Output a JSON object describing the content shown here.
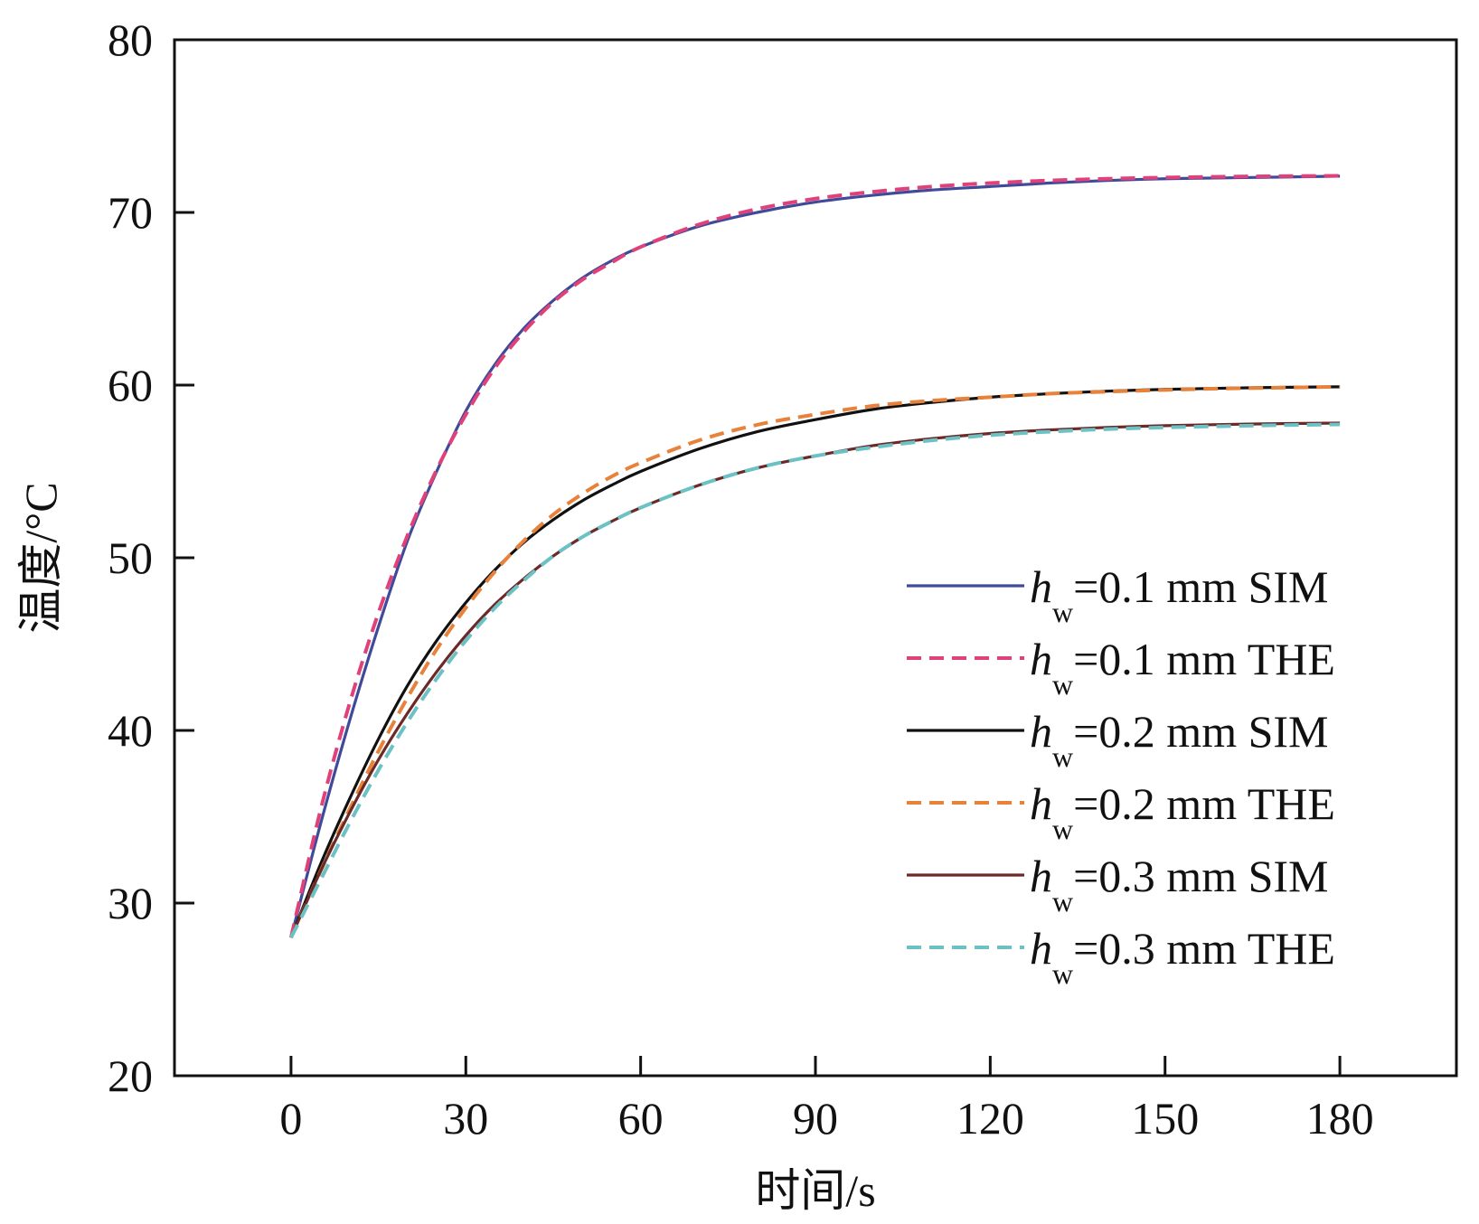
{
  "chart_data": {
    "type": "line",
    "xlabel": "时间/s",
    "ylabel": "温度/°C",
    "xlim": [
      -20,
      200
    ],
    "ylim": [
      20,
      80
    ],
    "xticks": [
      0,
      30,
      60,
      90,
      120,
      150,
      180
    ],
    "yticks": [
      20,
      30,
      40,
      50,
      60,
      70,
      80
    ],
    "grid": false,
    "legend_position": "center-right",
    "series": [
      {
        "name": "hw=0.1 mm SIM",
        "label_main": "h",
        "label_sub": "w",
        "label_rest": "=0.1 mm SIM",
        "color": "#3f4a99",
        "dash": "solid",
        "x": [
          0,
          5,
          10,
          15,
          20,
          25,
          30,
          35,
          40,
          45,
          50,
          55,
          60,
          70,
          80,
          90,
          100,
          110,
          120,
          130,
          140,
          150,
          160,
          170,
          180
        ],
        "y": [
          28,
          34.5,
          40.5,
          46,
          51,
          55,
          58.5,
          61.2,
          63.3,
          64.9,
          66.2,
          67.2,
          68,
          69.2,
          70,
          70.6,
          71,
          71.3,
          71.5,
          71.7,
          71.85,
          71.95,
          72,
          72.05,
          72.1
        ]
      },
      {
        "name": "hw=0.1 mm THE",
        "label_main": "h",
        "label_sub": "w",
        "label_rest": "=0.1 mm THE",
        "color": "#e0417a",
        "dash": "dashed",
        "x": [
          0,
          5,
          10,
          15,
          20,
          25,
          30,
          35,
          40,
          45,
          50,
          55,
          60,
          70,
          80,
          90,
          100,
          110,
          120,
          130,
          140,
          150,
          160,
          170,
          180
        ],
        "y": [
          28,
          35.3,
          41.5,
          46.8,
          51.3,
          55.1,
          58.3,
          61,
          63.1,
          64.8,
          66.1,
          67.1,
          68,
          69.3,
          70.2,
          70.8,
          71.2,
          71.5,
          71.7,
          71.85,
          71.95,
          72.02,
          72.07,
          72.1,
          72.12
        ]
      },
      {
        "name": "hw=0.2 mm SIM",
        "label_main": "h",
        "label_sub": "w",
        "label_rest": "=0.2 mm SIM",
        "color": "#111111",
        "dash": "solid",
        "x": [
          0,
          5,
          10,
          15,
          20,
          25,
          30,
          35,
          40,
          45,
          50,
          55,
          60,
          70,
          80,
          90,
          100,
          110,
          120,
          130,
          140,
          150,
          160,
          170,
          180
        ],
        "y": [
          28,
          32.2,
          36,
          39.5,
          42.6,
          45.2,
          47.4,
          49.3,
          50.9,
          52.2,
          53.3,
          54.2,
          55,
          56.3,
          57.3,
          58,
          58.6,
          59,
          59.3,
          59.5,
          59.65,
          59.75,
          59.82,
          59.87,
          59.9
        ]
      },
      {
        "name": "hw=0.2 mm THE",
        "label_main": "h",
        "label_sub": "w",
        "label_rest": "=0.2 mm THE",
        "color": "#e8823a",
        "dash": "dashed",
        "x": [
          0,
          5,
          10,
          15,
          20,
          25,
          30,
          35,
          40,
          45,
          50,
          55,
          60,
          70,
          80,
          90,
          100,
          110,
          120,
          130,
          140,
          150,
          160,
          170,
          180
        ],
        "y": [
          28,
          31.8,
          35.4,
          38.8,
          41.9,
          44.7,
          47.1,
          49.2,
          51,
          52.5,
          53.7,
          54.7,
          55.5,
          56.8,
          57.7,
          58.3,
          58.8,
          59.1,
          59.3,
          59.5,
          59.62,
          59.72,
          59.8,
          59.85,
          59.9
        ]
      },
      {
        "name": "hw=0.3 mm SIM",
        "label_main": "h",
        "label_sub": "w",
        "label_rest": "=0.3 mm SIM",
        "color": "#6b2a28",
        "dash": "solid",
        "x": [
          0,
          5,
          10,
          15,
          20,
          25,
          30,
          35,
          40,
          45,
          50,
          55,
          60,
          70,
          80,
          90,
          100,
          110,
          120,
          130,
          140,
          150,
          160,
          170,
          180
        ],
        "y": [
          28,
          31.8,
          35.2,
          38.3,
          41,
          43.4,
          45.5,
          47.3,
          48.8,
          50.1,
          51.2,
          52.1,
          52.9,
          54.2,
          55.2,
          55.9,
          56.5,
          56.9,
          57.2,
          57.4,
          57.55,
          57.65,
          57.72,
          57.77,
          57.8
        ]
      },
      {
        "name": "hw=0.3 mm THE",
        "label_main": "h",
        "label_sub": "w",
        "label_rest": "=0.3 mm THE",
        "color": "#6cc1c4",
        "dash": "dashed",
        "x": [
          0,
          5,
          10,
          15,
          20,
          25,
          30,
          35,
          40,
          45,
          50,
          55,
          60,
          70,
          80,
          90,
          100,
          110,
          120,
          130,
          140,
          150,
          160,
          170,
          180
        ],
        "y": [
          28,
          31.3,
          34.6,
          37.7,
          40.5,
          43,
          45.2,
          47.1,
          48.7,
          50.1,
          51.2,
          52.1,
          52.9,
          54.2,
          55.2,
          55.9,
          56.4,
          56.8,
          57.1,
          57.3,
          57.45,
          57.55,
          57.62,
          57.68,
          57.72
        ]
      }
    ]
  }
}
